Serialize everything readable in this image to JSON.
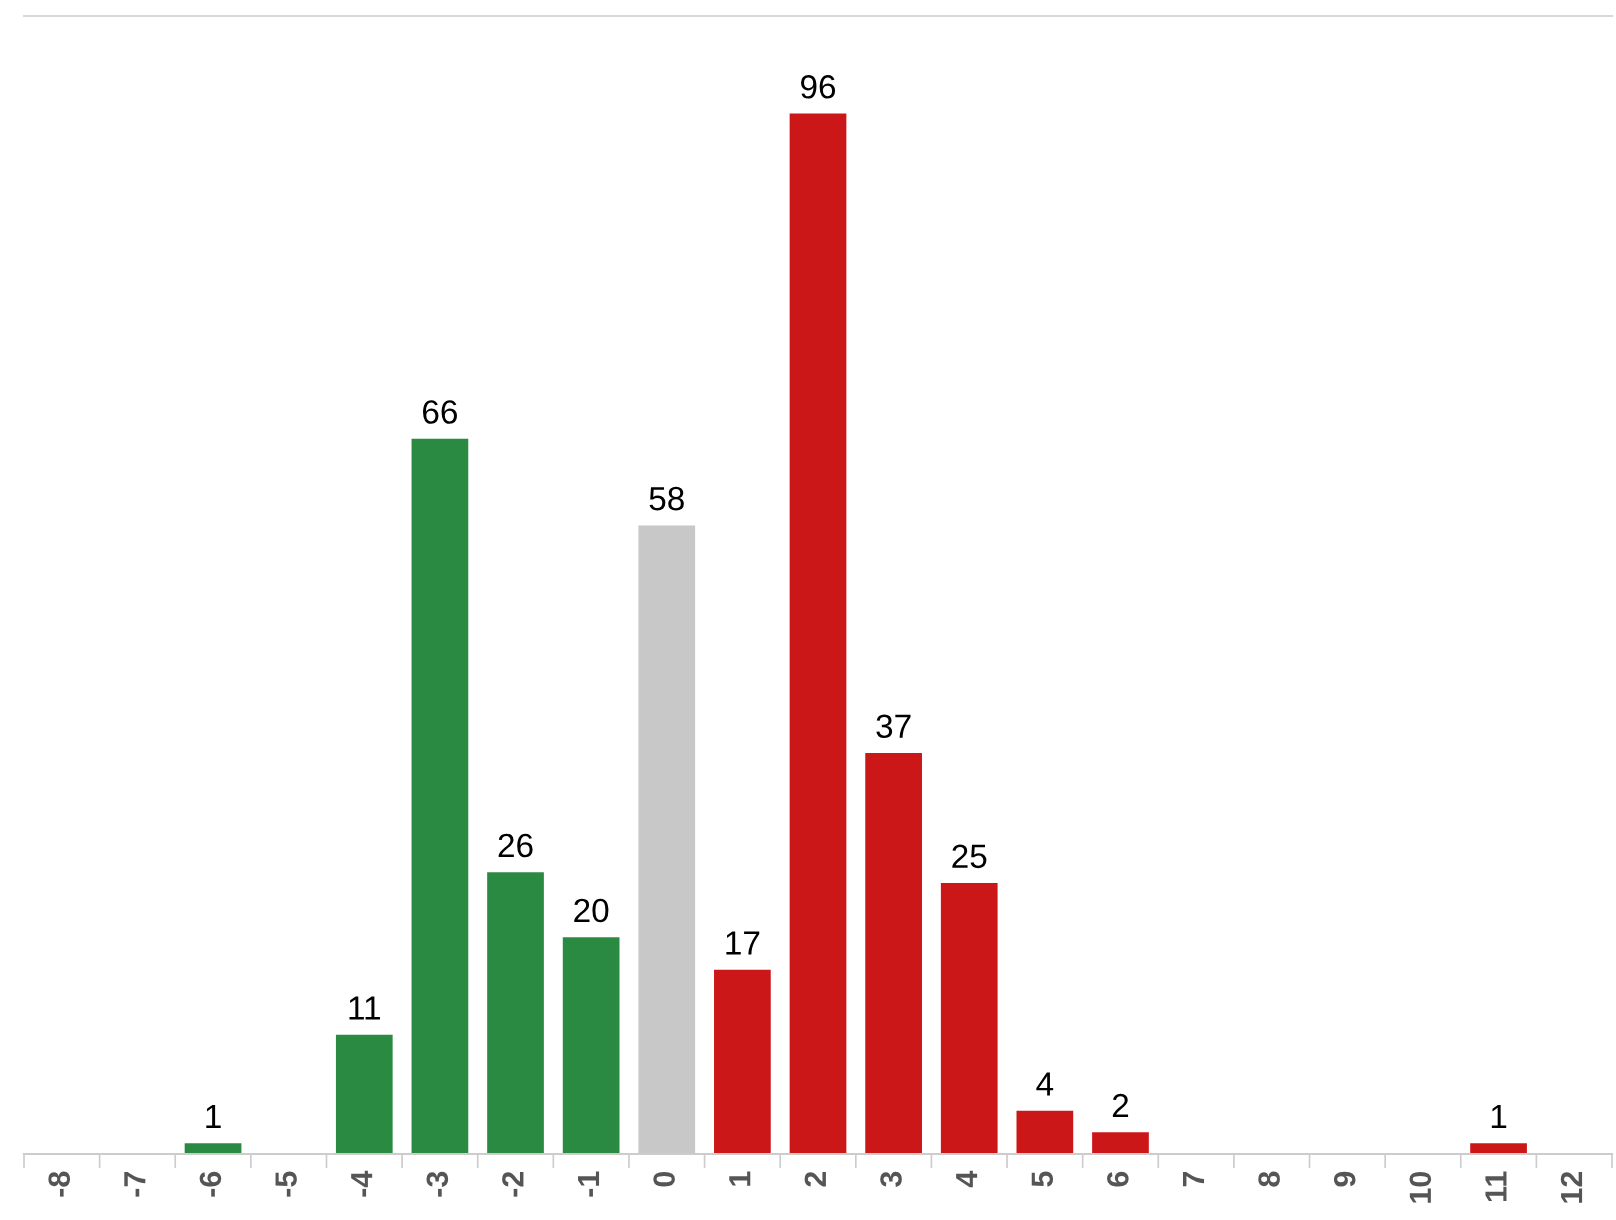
{
  "chart_data": {
    "type": "bar",
    "categories": [
      "-8",
      "-7",
      "-6",
      "-5",
      "-4",
      "-3",
      "-2",
      "-1",
      "0",
      "1",
      "2",
      "3",
      "4",
      "5",
      "6",
      "7",
      "8",
      "9",
      "10",
      "11",
      "12"
    ],
    "values": [
      0,
      0,
      1,
      0,
      11,
      66,
      26,
      20,
      58,
      17,
      96,
      37,
      25,
      4,
      2,
      0,
      0,
      0,
      0,
      1,
      0
    ],
    "value_labels": [
      null,
      null,
      "1",
      null,
      "11",
      "66",
      "26",
      "20",
      "58",
      "17",
      "96",
      "37",
      "25",
      "4",
      "2",
      null,
      null,
      null,
      null,
      "1",
      null
    ],
    "colors": [
      "#2b8a42",
      "#2b8a42",
      "#2b8a42",
      "#2b8a42",
      "#2b8a42",
      "#2b8a42",
      "#2b8a42",
      "#2b8a42",
      "#c8c8c8",
      "#cc1719",
      "#cc1719",
      "#cc1719",
      "#cc1719",
      "#cc1719",
      "#cc1719",
      "#cc1719",
      "#cc1719",
      "#cc1719",
      "#cc1719",
      "#cc1719",
      "#cc1719"
    ],
    "ylim": [
      0,
      105
    ],
    "grid": false,
    "legend": false
  }
}
